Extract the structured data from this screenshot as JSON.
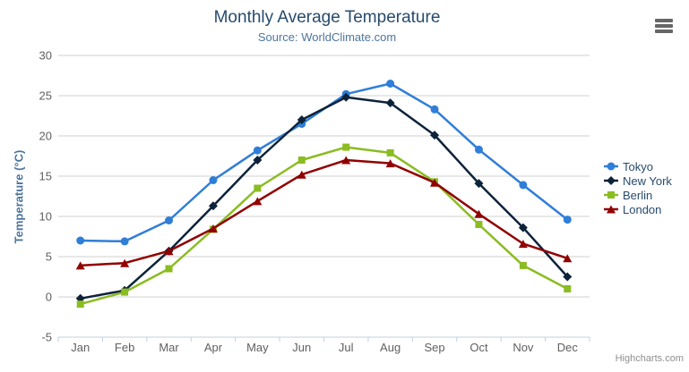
{
  "chart_data": {
    "type": "line",
    "title": "Monthly Average Temperature",
    "subtitle": "Source: WorldClimate.com",
    "ylabel": "Temperature (°C)",
    "xlabel": "",
    "categories": [
      "Jan",
      "Feb",
      "Mar",
      "Apr",
      "May",
      "Jun",
      "Jul",
      "Aug",
      "Sep",
      "Oct",
      "Nov",
      "Dec"
    ],
    "ylim": [
      -5,
      30
    ],
    "yticks": [
      -5,
      0,
      5,
      10,
      15,
      20,
      25,
      30
    ],
    "grid": true,
    "legend_position": "right",
    "series": [
      {
        "name": "Tokyo",
        "color": "#2f7ed8",
        "marker": "circle",
        "values": [
          7.0,
          6.9,
          9.5,
          14.5,
          18.2,
          21.5,
          25.2,
          26.5,
          23.3,
          18.3,
          13.9,
          9.6
        ]
      },
      {
        "name": "New York",
        "color": "#0d233a",
        "marker": "diamond",
        "values": [
          -0.2,
          0.8,
          5.7,
          11.3,
          17.0,
          22.0,
          24.8,
          24.1,
          20.1,
          14.1,
          8.6,
          2.5
        ]
      },
      {
        "name": "Berlin",
        "color": "#8bbc21",
        "marker": "square",
        "values": [
          -0.9,
          0.6,
          3.5,
          8.4,
          13.5,
          17.0,
          18.6,
          17.9,
          14.3,
          9.0,
          3.9,
          1.0
        ]
      },
      {
        "name": "London",
        "color": "#910000",
        "marker": "triangle",
        "values": [
          3.9,
          4.2,
          5.7,
          8.5,
          11.9,
          15.2,
          17.0,
          16.6,
          14.2,
          10.3,
          6.6,
          4.8
        ]
      }
    ],
    "colors": {
      "title": "#274b6d",
      "subtitle": "#4d759e",
      "axis_labels": "#606060",
      "grid": "#d0d0d0",
      "axis_line": "#c0d0e0",
      "legend_text": "#274b6d",
      "credits": "#909090",
      "burger": "#666666"
    },
    "credits": "Highcharts.com",
    "export_icon": "hamburger-icon"
  }
}
